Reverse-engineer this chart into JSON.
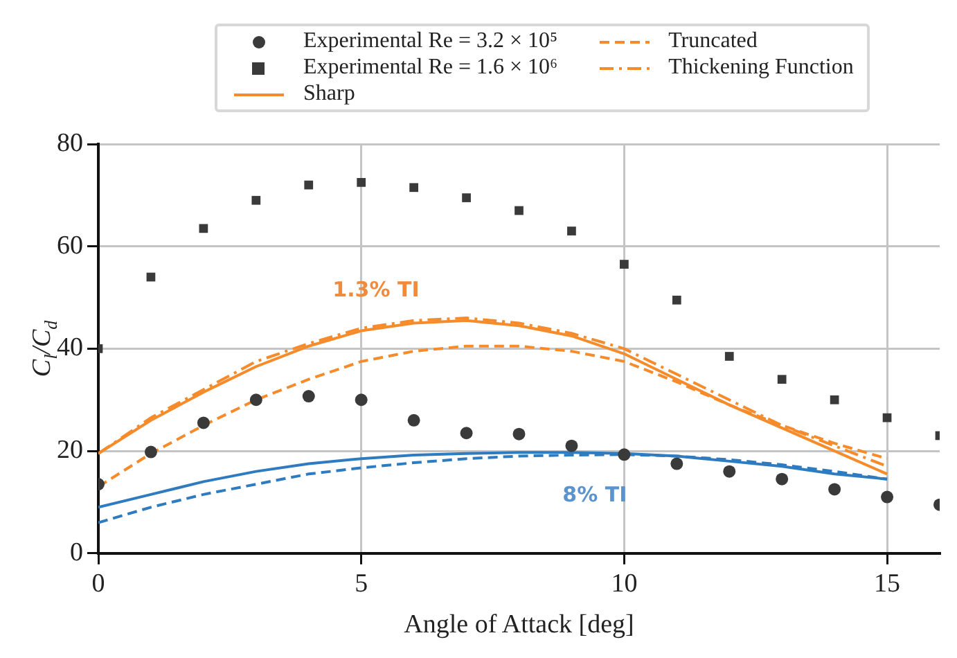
{
  "chart_data": {
    "type": "line",
    "xlabel": "Angle of Attack [deg]",
    "ylabel": "C$_{l}$/C$_{d}$",
    "xlim": [
      0,
      16
    ],
    "xticks": [
      0,
      5,
      10,
      15
    ],
    "ylim": [
      0,
      80
    ],
    "yticks": [
      0,
      20,
      40,
      60,
      80
    ],
    "grid": true,
    "legend": "top",
    "series": [
      {
        "name": "Experimental Re = 3.2 × 10⁵",
        "type": "scatter",
        "marker": "circle",
        "color": "#3a3a3a",
        "x": [
          0,
          1,
          2,
          3,
          4,
          5,
          6,
          7,
          8,
          9,
          10,
          11,
          12,
          13,
          14,
          15,
          16
        ],
        "values": [
          13.5,
          19.8,
          25.5,
          30,
          30.7,
          30,
          26,
          23.5,
          23.3,
          21,
          19.3,
          17.5,
          16,
          14.5,
          12.5,
          11,
          9.5
        ]
      },
      {
        "name": "Experimental Re = 1.6 × 10⁶",
        "type": "scatter",
        "marker": "square",
        "color": "#3a3a3a",
        "x": [
          0,
          1,
          2,
          3,
          4,
          5,
          6,
          7,
          8,
          9,
          10,
          11,
          12,
          13,
          14,
          15,
          16
        ],
        "values": [
          40,
          54,
          63.5,
          69,
          72,
          72.5,
          71.5,
          69.5,
          67,
          63,
          56.5,
          49.5,
          38.5,
          34,
          30,
          26.5,
          23
        ]
      },
      {
        "name": "Sharp",
        "line_style": "solid",
        "color": "#f58b2a",
        "x": [
          0,
          1,
          2,
          3,
          4,
          5,
          6,
          7,
          8,
          9,
          10,
          11,
          12,
          13,
          14,
          15
        ],
        "values": [
          19.5,
          26,
          31.5,
          36.5,
          40.5,
          43.5,
          45,
          45.5,
          44.5,
          42.5,
          39,
          34,
          29,
          24.5,
          20,
          15.5
        ]
      },
      {
        "name": "Truncated",
        "line_style": "dashed",
        "color": "#f58b2a",
        "x": [
          0,
          1,
          2,
          3,
          4,
          5,
          6,
          7,
          8,
          9,
          10,
          11,
          12,
          13,
          14,
          15
        ],
        "values": [
          13,
          19.5,
          25,
          30,
          34,
          37.5,
          39.5,
          40.5,
          40.5,
          39.5,
          37.5,
          33.5,
          29,
          25,
          21.5,
          18.5
        ]
      },
      {
        "name": "Thickening Function",
        "line_style": "dashdot",
        "color": "#f58b2a",
        "x": [
          0,
          1,
          2,
          3,
          4,
          5,
          6,
          7,
          8,
          9,
          10,
          11,
          12,
          13,
          14,
          15
        ],
        "values": [
          19.5,
          26.5,
          32,
          37.5,
          41,
          44,
          45.5,
          46,
          45,
          43,
          40,
          35,
          30,
          25,
          21,
          17
        ]
      },
      {
        "line_style": "solid",
        "color": "#2f7bbf",
        "x": [
          0,
          1,
          2,
          3,
          4,
          5,
          6,
          7,
          8,
          9,
          10,
          11,
          12,
          13,
          14,
          15
        ],
        "values": [
          9,
          11.5,
          14,
          16,
          17.5,
          18.5,
          19.2,
          19.5,
          19.7,
          19.7,
          19.5,
          19,
          18,
          17,
          15.5,
          14.5
        ]
      },
      {
        "line_style": "dashed",
        "color": "#2f7bbf",
        "x": [
          0,
          1,
          2,
          3,
          4,
          5,
          6,
          7,
          8,
          9,
          10,
          11,
          12,
          13,
          14,
          15
        ],
        "values": [
          6,
          9,
          11.5,
          13.5,
          15.5,
          16.7,
          17.7,
          18.5,
          19,
          19.2,
          19.3,
          19,
          18.3,
          17.3,
          16,
          14.5
        ]
      }
    ],
    "annotations": [
      "1.3% TI",
      "8% TI"
    ]
  }
}
